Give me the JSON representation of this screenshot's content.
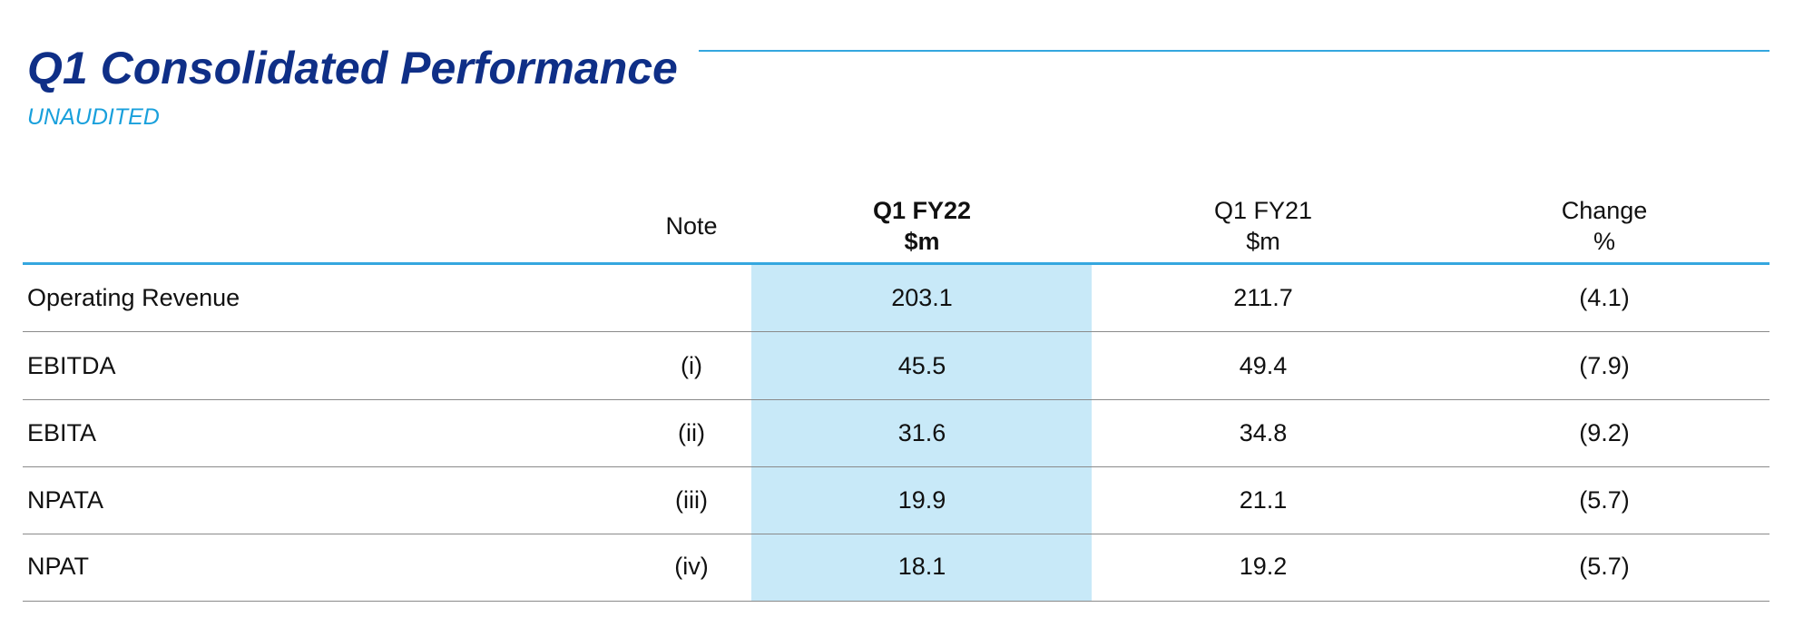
{
  "title": "Q1 Consolidated Performance",
  "subtitle": "UNAUDITED",
  "table": {
    "headers": {
      "note": "Note",
      "current_period": "Q1 FY22",
      "current_unit": "$m",
      "prior_period": "Q1 FY21",
      "prior_unit": "$m",
      "change": "Change",
      "change_unit": "%"
    },
    "rows": [
      {
        "label": "Operating Revenue",
        "note": "",
        "current": "203.1",
        "prior": "211.7",
        "change": "(4.1)"
      },
      {
        "label": "EBITDA",
        "note": "(i)",
        "current": "45.5",
        "prior": "49.4",
        "change": "(7.9)"
      },
      {
        "label": "EBITA",
        "note": "(ii)",
        "current": "31.6",
        "prior": "34.8",
        "change": "(9.2)"
      },
      {
        "label": "NPATA",
        "note": "(iii)",
        "current": "19.9",
        "prior": "21.1",
        "change": "(5.7)"
      },
      {
        "label": "NPAT",
        "note": "(iv)",
        "current": "18.1",
        "prior": "19.2",
        "change": "(5.7)"
      }
    ]
  },
  "colors": {
    "title": "#0f2f87",
    "subtitle": "#19a0dc",
    "accent_rule": "#35a7df",
    "highlight_column": "#c8e9f8"
  }
}
